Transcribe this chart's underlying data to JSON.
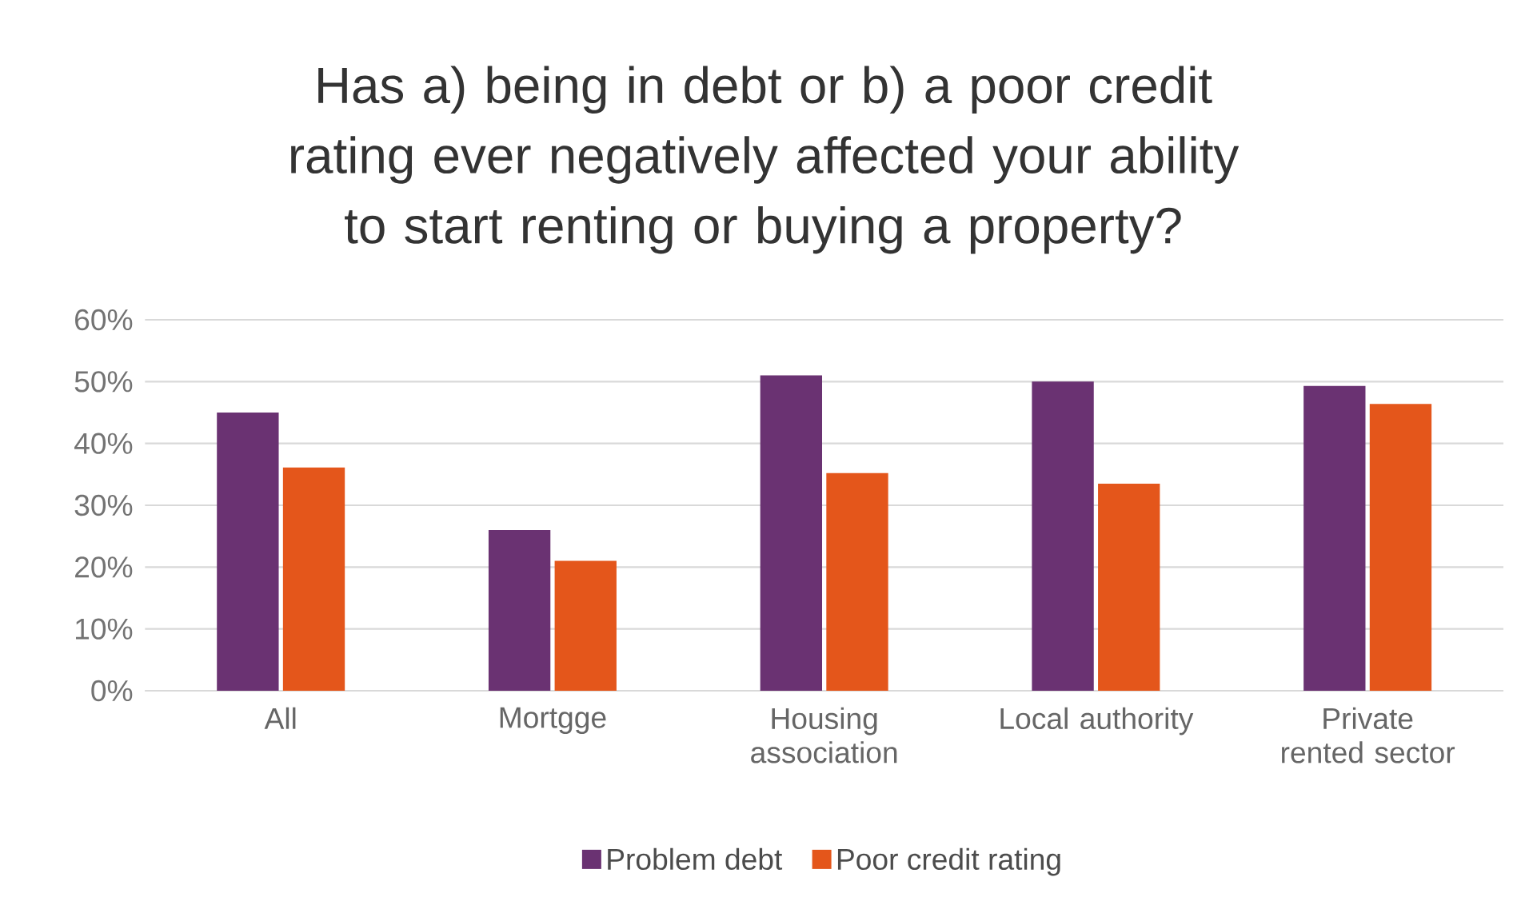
{
  "chart_data": {
    "type": "bar",
    "title": "Has a) being in debt or b) a poor credit rating ever negatively affected your ability to start renting or buying a property?",
    "categories": [
      "All",
      "Mortgge",
      "Housing association",
      "Local authority",
      "Private rented sector"
    ],
    "series": [
      {
        "name": "Problem debt",
        "color": "#6a3272",
        "values": [
          45,
          26,
          51,
          50,
          49.3
        ]
      },
      {
        "name": "Poor credit rating",
        "color": "#e4561b",
        "values": [
          36.1,
          21,
          35.2,
          33.5,
          46.4
        ]
      }
    ],
    "ylim": [
      0,
      60
    ],
    "yticks": [
      {
        "value": 0,
        "label": "0%"
      },
      {
        "value": 10,
        "label": "10%"
      },
      {
        "value": 20,
        "label": "20%"
      },
      {
        "value": 30,
        "label": "30%"
      },
      {
        "value": 40,
        "label": "40%"
      },
      {
        "value": 50,
        "label": "50%"
      },
      {
        "value": 60,
        "label": "60%"
      }
    ],
    "grid": "y",
    "legend": "bottom"
  }
}
